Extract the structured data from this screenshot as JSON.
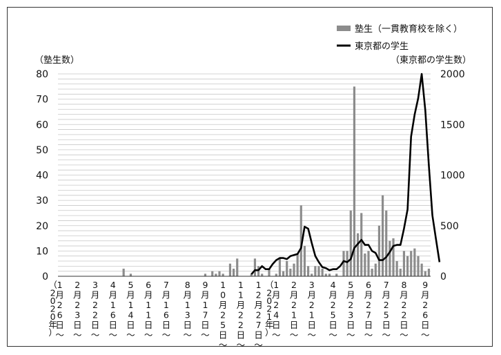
{
  "chart_data": {
    "type": "bar+line",
    "left_axis_title": "（塾生数）",
    "right_axis_title": "（東京都の学生数）",
    "left_ylim": [
      0,
      80
    ],
    "left_ticks": [
      0,
      10,
      20,
      30,
      40,
      50,
      60,
      70,
      80
    ],
    "right_ylim": [
      0,
      2000
    ],
    "right_ticks": [
      0,
      500,
      1000,
      1500,
      2000
    ],
    "grid": true,
    "legend_position": "top-right",
    "series": [
      {
        "name": "塾生（一貫教育校を除く）",
        "kind": "bar",
        "axis": "left",
        "color": "#8c8c8c",
        "values": [
          0,
          0,
          0,
          0,
          0,
          0,
          0,
          0,
          0,
          0,
          0,
          0,
          0,
          0,
          0,
          0,
          0,
          0,
          3,
          0,
          1,
          0,
          0,
          0,
          0,
          0,
          0,
          0,
          0,
          0,
          0,
          0,
          0,
          0,
          0,
          0,
          0,
          0,
          0,
          0,
          0,
          1,
          0,
          2,
          1,
          2,
          1,
          0,
          5,
          3,
          7,
          0,
          0,
          0,
          1,
          7,
          4,
          1,
          0,
          3,
          0,
          1,
          7,
          2,
          6,
          3,
          5,
          9,
          28,
          12,
          4,
          1,
          4,
          4,
          3,
          1,
          1,
          0,
          1,
          0,
          10,
          10,
          26,
          75,
          17,
          25,
          9,
          10,
          3,
          5,
          20,
          32,
          26,
          14,
          15,
          6,
          3,
          10,
          8,
          10,
          11,
          8,
          5,
          2,
          3
        ]
      },
      {
        "name": "東京都の学生",
        "kind": "line",
        "axis": "right",
        "color": "#000000",
        "start_index": 54,
        "values": [
          20,
          60,
          60,
          100,
          70,
          70,
          120,
          160,
          180,
          180,
          170,
          200,
          210,
          220,
          280,
          490,
          470,
          330,
          200,
          140,
          90,
          80,
          60,
          70,
          70,
          100,
          150,
          140,
          170,
          280,
          320,
          360,
          310,
          310,
          250,
          230,
          160,
          160,
          190,
          240,
          300,
          310,
          310,
          470,
          660,
          1380,
          1600,
          1760,
          2000,
          1640,
          1100,
          600,
          370,
          140
        ]
      }
    ],
    "x_labels": [
      {
        "index": 0,
        "text": "1月26日〜",
        "year_note": "（2020年）"
      },
      {
        "index": 5,
        "text": "2月23日〜"
      },
      {
        "index": 10,
        "text": "3月22日〜"
      },
      {
        "index": 15,
        "text": "4月16日〜"
      },
      {
        "index": 20,
        "text": "5月14日〜"
      },
      {
        "index": 25,
        "text": "6月11日〜"
      },
      {
        "index": 30,
        "text": "7月16日〜"
      },
      {
        "index": 36,
        "text": "8月13日〜"
      },
      {
        "index": 41,
        "text": "9月17日〜"
      },
      {
        "index": 46,
        "text": "10月25日〜"
      },
      {
        "index": 51,
        "text": "11月22日〜"
      },
      {
        "index": 56,
        "text": "12月27日〜"
      },
      {
        "index": 61,
        "text": "1月24日〜",
        "year_note": "（2021年）"
      },
      {
        "index": 66,
        "text": "2月21日〜"
      },
      {
        "index": 71,
        "text": "3月21日〜"
      },
      {
        "index": 77,
        "text": "4月25日〜"
      },
      {
        "index": 82,
        "text": "5月23日〜"
      },
      {
        "index": 87,
        "text": "6月27日〜"
      },
      {
        "index": 92,
        "text": "7月25日〜"
      },
      {
        "index": 97,
        "text": "8月22日〜"
      },
      {
        "index": 103,
        "text": "9月26日〜"
      }
    ]
  }
}
